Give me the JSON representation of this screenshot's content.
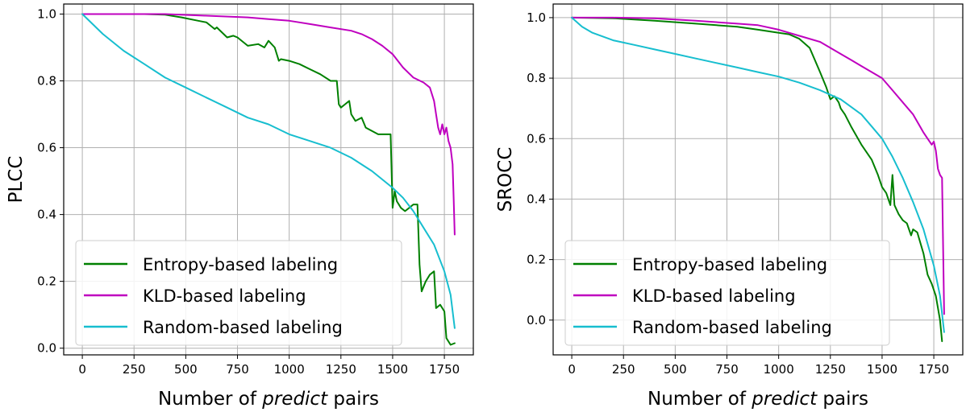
{
  "chart_data": [
    {
      "type": "line",
      "xlabel": {
        "prefix": "Number of ",
        "italic": "predict",
        "suffix": " pairs"
      },
      "ylabel": "PLCC",
      "xlim": [
        -90,
        1890
      ],
      "ylim": [
        -0.02,
        1.03
      ],
      "xticks": [
        0,
        250,
        500,
        750,
        1000,
        1250,
        1500,
        1750
      ],
      "yticks": [
        0.0,
        0.2,
        0.4,
        0.6,
        0.8,
        1.0
      ],
      "yticklabels": [
        "0.0",
        "0.2",
        "0.4",
        "0.6",
        "0.8",
        "1.0"
      ],
      "grid": true,
      "legend_position": "lower-left",
      "series": [
        {
          "name": "Entropy-based labeling",
          "color": "#008000",
          "x": [
            0,
            150,
            300,
            400,
            480,
            560,
            600,
            620,
            640,
            650,
            700,
            730,
            750,
            800,
            850,
            880,
            900,
            930,
            950,
            960,
            1000,
            1050,
            1100,
            1150,
            1200,
            1230,
            1240,
            1250,
            1270,
            1290,
            1300,
            1320,
            1350,
            1370,
            1400,
            1430,
            1460,
            1490,
            1500,
            1510,
            1520,
            1540,
            1560,
            1580,
            1600,
            1620,
            1630,
            1640,
            1660,
            1680,
            1700,
            1710,
            1730,
            1750,
            1760,
            1780,
            1800
          ],
          "y": [
            1.0,
            1.0,
            1.0,
            0.998,
            0.99,
            0.98,
            0.975,
            0.965,
            0.955,
            0.96,
            0.93,
            0.935,
            0.93,
            0.905,
            0.91,
            0.9,
            0.92,
            0.9,
            0.86,
            0.865,
            0.86,
            0.85,
            0.835,
            0.82,
            0.8,
            0.8,
            0.73,
            0.72,
            0.73,
            0.74,
            0.7,
            0.68,
            0.69,
            0.66,
            0.65,
            0.64,
            0.64,
            0.64,
            0.42,
            0.47,
            0.44,
            0.42,
            0.41,
            0.42,
            0.43,
            0.43,
            0.25,
            0.17,
            0.2,
            0.22,
            0.23,
            0.12,
            0.13,
            0.11,
            0.03,
            0.01,
            0.015
          ]
        },
        {
          "name": "KLD-based labeling",
          "color": "#bf00bf",
          "x": [
            0,
            200,
            400,
            600,
            800,
            900,
            1000,
            1100,
            1200,
            1300,
            1350,
            1400,
            1450,
            1500,
            1550,
            1600,
            1650,
            1680,
            1700,
            1710,
            1720,
            1730,
            1740,
            1750,
            1760,
            1770,
            1780,
            1790,
            1795,
            1800
          ],
          "y": [
            1.0,
            1.0,
            1.0,
            0.995,
            0.99,
            0.985,
            0.98,
            0.97,
            0.96,
            0.95,
            0.94,
            0.925,
            0.905,
            0.88,
            0.84,
            0.81,
            0.795,
            0.78,
            0.74,
            0.7,
            0.66,
            0.64,
            0.67,
            0.64,
            0.66,
            0.62,
            0.6,
            0.55,
            0.45,
            0.34
          ]
        },
        {
          "name": "Random-based labeling",
          "color": "#17becf",
          "x": [
            0,
            100,
            200,
            300,
            400,
            500,
            600,
            700,
            800,
            900,
            1000,
            1100,
            1200,
            1300,
            1400,
            1500,
            1550,
            1600,
            1650,
            1700,
            1750,
            1780,
            1800
          ],
          "y": [
            1.0,
            0.94,
            0.89,
            0.85,
            0.81,
            0.78,
            0.75,
            0.72,
            0.69,
            0.67,
            0.64,
            0.62,
            0.6,
            0.57,
            0.53,
            0.48,
            0.45,
            0.41,
            0.36,
            0.31,
            0.23,
            0.16,
            0.06
          ]
        }
      ]
    },
    {
      "type": "line",
      "xlabel": {
        "prefix": "Number of ",
        "italic": "predict",
        "suffix": " pairs"
      },
      "ylabel": "SROCC",
      "xlim": [
        -90,
        1890
      ],
      "ylim": [
        -0.115,
        1.045
      ],
      "xticks": [
        0,
        250,
        500,
        750,
        1000,
        1250,
        1500,
        1750
      ],
      "yticks": [
        0.0,
        0.2,
        0.4,
        0.6,
        0.8,
        1.0
      ],
      "yticklabels": [
        "0.0",
        "0.2",
        "0.4",
        "0.6",
        "0.8",
        "1.0"
      ],
      "grid": true,
      "legend_position": "lower-left",
      "series": [
        {
          "name": "Entropy-based labeling",
          "color": "#008000",
          "x": [
            0,
            200,
            400,
            600,
            800,
            900,
            1000,
            1050,
            1100,
            1150,
            1200,
            1230,
            1250,
            1270,
            1290,
            1300,
            1320,
            1350,
            1400,
            1450,
            1480,
            1500,
            1520,
            1540,
            1550,
            1560,
            1580,
            1600,
            1620,
            1640,
            1650,
            1670,
            1700,
            1720,
            1740,
            1760,
            1780,
            1790
          ],
          "y": [
            1.0,
            0.998,
            0.99,
            0.98,
            0.97,
            0.96,
            0.95,
            0.945,
            0.93,
            0.9,
            0.82,
            0.77,
            0.73,
            0.74,
            0.72,
            0.7,
            0.68,
            0.64,
            0.58,
            0.53,
            0.48,
            0.44,
            0.42,
            0.38,
            0.48,
            0.38,
            0.35,
            0.33,
            0.32,
            0.28,
            0.3,
            0.29,
            0.22,
            0.15,
            0.12,
            0.08,
            0.0,
            -0.07
          ]
        },
        {
          "name": "KLD-based labeling",
          "color": "#bf00bf",
          "x": [
            0,
            200,
            400,
            600,
            800,
            900,
            1000,
            1100,
            1200,
            1300,
            1350,
            1400,
            1450,
            1500,
            1550,
            1600,
            1650,
            1700,
            1720,
            1740,
            1750,
            1760,
            1770,
            1780,
            1790,
            1800
          ],
          "y": [
            1.0,
            1.0,
            0.998,
            0.99,
            0.98,
            0.975,
            0.96,
            0.94,
            0.92,
            0.88,
            0.86,
            0.84,
            0.82,
            0.8,
            0.76,
            0.72,
            0.68,
            0.62,
            0.6,
            0.58,
            0.59,
            0.56,
            0.5,
            0.48,
            0.47,
            0.02
          ]
        },
        {
          "name": "Random-based labeling",
          "color": "#17becf",
          "x": [
            0,
            50,
            100,
            200,
            300,
            400,
            500,
            600,
            700,
            800,
            900,
            1000,
            1100,
            1200,
            1300,
            1400,
            1450,
            1500,
            1550,
            1600,
            1650,
            1700,
            1750,
            1780,
            1800
          ],
          "y": [
            1.0,
            0.97,
            0.95,
            0.925,
            0.91,
            0.895,
            0.88,
            0.865,
            0.85,
            0.835,
            0.82,
            0.805,
            0.785,
            0.76,
            0.73,
            0.68,
            0.64,
            0.6,
            0.54,
            0.47,
            0.39,
            0.3,
            0.18,
            0.08,
            -0.04
          ]
        }
      ]
    }
  ]
}
